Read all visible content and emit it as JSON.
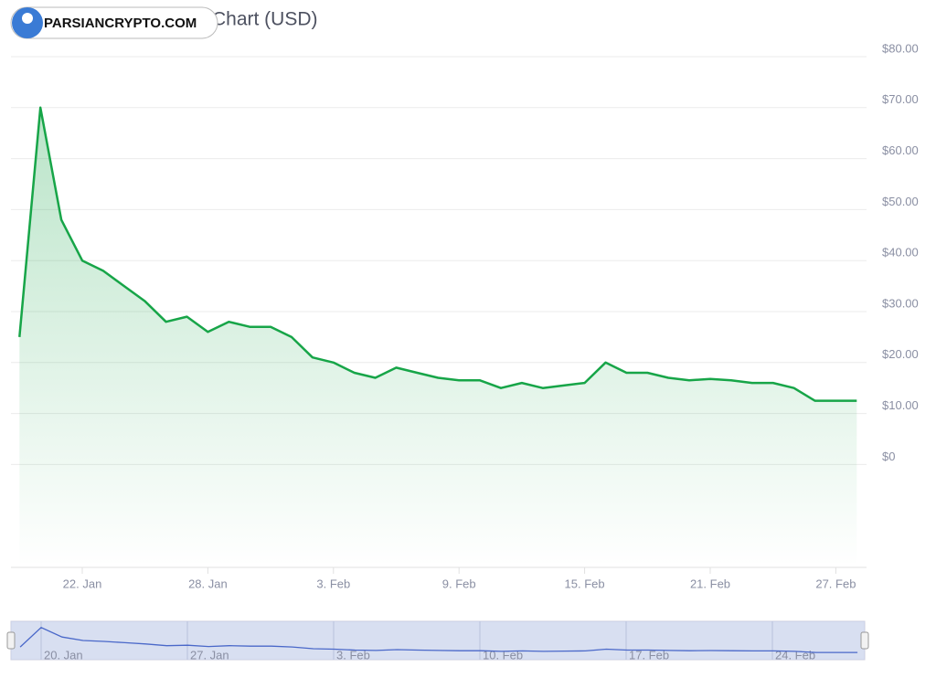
{
  "watermark": "PARSIANCRYPTO.COM",
  "chart_data": {
    "type": "line",
    "title": "Chart (USD)",
    "categories": [
      null,
      null,
      null,
      "22. Jan",
      null,
      null,
      null,
      null,
      null,
      "28. Jan",
      null,
      null,
      null,
      null,
      null,
      "3. Feb",
      null,
      null,
      null,
      null,
      null,
      "9. Feb",
      null,
      null,
      null,
      null,
      null,
      "15. Feb",
      null,
      null,
      null,
      null,
      null,
      "21. Feb",
      null,
      null,
      null,
      null,
      null,
      "27. Feb",
      null
    ],
    "series": [
      {
        "color": "#17a548",
        "values": [
          25,
          70,
          48,
          40,
          38,
          35,
          32,
          28,
          29,
          26,
          28,
          27,
          27,
          25,
          21,
          20,
          18,
          17,
          19,
          18,
          17,
          16.5,
          16.5,
          15,
          16,
          15,
          15.5,
          16,
          20,
          18,
          18,
          17,
          16.5,
          16.8,
          16.5,
          16,
          16,
          15,
          12.5,
          12.5,
          12.5
        ]
      }
    ],
    "ylim": [
      -20,
      80
    ],
    "yticks": [
      {
        "value": 0,
        "label": "$0"
      },
      {
        "value": 10,
        "label": "$10.00"
      },
      {
        "value": 20,
        "label": "$20.00"
      },
      {
        "value": 30,
        "label": "$30.00"
      },
      {
        "value": 40,
        "label": "$40.00"
      },
      {
        "value": 50,
        "label": "$50.00"
      },
      {
        "value": 60,
        "label": "$60.00"
      },
      {
        "value": 70,
        "label": "$70.00"
      },
      {
        "value": 80,
        "label": "$80.00"
      }
    ],
    "grid": true,
    "navigator": {
      "labels": [
        "20. Jan",
        "27. Jan",
        "3. Feb",
        "10. Feb",
        "17. Feb",
        "24. Feb"
      ]
    }
  }
}
